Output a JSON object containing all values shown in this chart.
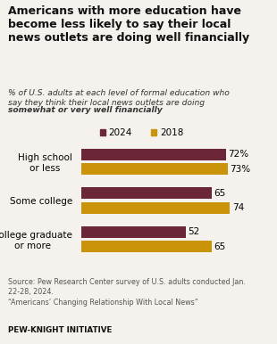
{
  "title": "Americans with more education have\nbecome less likely to say their local\nnews outlets are doing well financially",
  "subtitle_line1": "% of U.S. adults at each level of formal education who",
  "subtitle_line2": "say they think their local news outlets are doing",
  "subtitle_line3": "somewhat or very well financially",
  "categories": [
    "High school\nor less",
    "Some college",
    "College graduate\nor more"
  ],
  "values_2024": [
    72,
    65,
    52
  ],
  "values_2018": [
    73,
    74,
    65
  ],
  "labels_2024": [
    "72%",
    "65",
    "52"
  ],
  "labels_2018": [
    "73%",
    "74",
    "65"
  ],
  "color_2024": "#6b2737",
  "color_2018": "#c9940a",
  "source_line1": "Source: Pew Research Center survey of U.S. adults conducted Jan.",
  "source_line2": "22-28, 2024.",
  "source_line3": "“Americans’ Changing Relationship With Local News”",
  "footer_text": "PEW-KNIGHT INITIATIVE",
  "background_color": "#f5f2ed",
  "xlim": [
    0,
    85
  ],
  "legend_labels": [
    "2024",
    "2018"
  ]
}
